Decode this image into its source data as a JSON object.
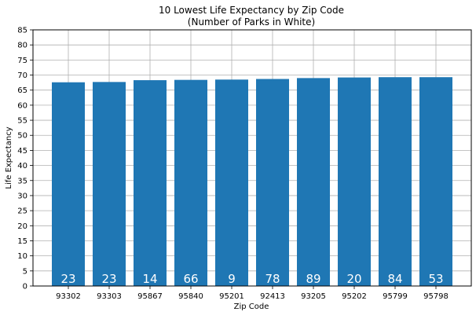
{
  "chart_data": {
    "type": "bar",
    "title": "10 Lowest Life Expectancy by Zip Code",
    "subtitle": "(Number of Parks in White)",
    "xlabel": "Zip Code",
    "ylabel": "Life Expectancy",
    "ylim": [
      0,
      85
    ],
    "yticks": [
      0,
      5,
      10,
      15,
      20,
      25,
      30,
      35,
      40,
      45,
      50,
      55,
      60,
      65,
      70,
      75,
      80,
      85
    ],
    "grid": true,
    "bar_color": "#1f77b4",
    "annotation_color": "#ffffff",
    "categories": [
      "93302",
      "93303",
      "95867",
      "95840",
      "95201",
      "92413",
      "93205",
      "95202",
      "95799",
      "95798"
    ],
    "values": [
      67.6,
      67.7,
      68.3,
      68.4,
      68.5,
      68.7,
      69.0,
      69.2,
      69.3,
      69.3
    ],
    "park_counts": [
      "23",
      "23",
      "14",
      "66",
      "9",
      "78",
      "89",
      "20",
      "84",
      "53"
    ]
  }
}
